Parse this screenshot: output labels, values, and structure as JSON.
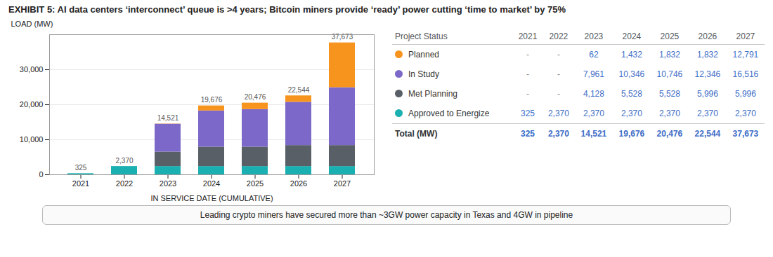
{
  "chart_data": {
    "type": "bar",
    "stacked": true,
    "title": "EXHIBIT 5: AI data centers ‘interconnect’ queue is >4 years; Bitcoin miners provide ‘ready’ power cutting ‘time to market’ by 75%",
    "xlabel": "IN SERVICE DATE (CUMULATIVE)",
    "ylabel": "LOAD (MW)",
    "categories": [
      "2021",
      "2022",
      "2023",
      "2024",
      "2025",
      "2026",
      "2027"
    ],
    "series": [
      {
        "name": "Approved to Energize",
        "color": "#1AAFB0",
        "values": [
          325,
          2370,
          2370,
          2370,
          2370,
          2370,
          2370
        ],
        "value_labels": [
          "325",
          "2,370",
          "2,370",
          "2,370",
          "2,370",
          "2,370",
          "2,370"
        ]
      },
      {
        "name": "Met Planning",
        "color": "#595F66",
        "values": [
          0,
          0,
          4128,
          5528,
          5528,
          5996,
          5996
        ],
        "value_labels": [
          "-",
          "-",
          "4,128",
          "5,528",
          "5,528",
          "5,996",
          "5,996"
        ]
      },
      {
        "name": "In Study",
        "color": "#7B68C8",
        "values": [
          0,
          0,
          7961,
          10346,
          10746,
          12346,
          16516
        ],
        "value_labels": [
          "-",
          "-",
          "7,961",
          "10,346",
          "10,746",
          "12,346",
          "16,516"
        ]
      },
      {
        "name": "Planned",
        "color": "#F7941D",
        "values": [
          0,
          0,
          62,
          1432,
          1832,
          1832,
          12791
        ],
        "value_labels": [
          "-",
          "-",
          "62",
          "1,432",
          "1,832",
          "1,832",
          "12,791"
        ]
      }
    ],
    "totals": {
      "name": "Total (MW)",
      "values": [
        325,
        2370,
        14521,
        19676,
        20476,
        22544,
        37673
      ],
      "value_labels": [
        "325",
        "2,370",
        "14,521",
        "19,676",
        "20,476",
        "22,544",
        "37,673"
      ]
    },
    "ylim": [
      0,
      40000
    ],
    "yticks": [
      0,
      {
        "value": 10000,
        "label": "10,000"
      },
      {
        "value": 20000,
        "label": "20,000"
      },
      {
        "value": 30000,
        "label": "30,000"
      }
    ],
    "grid": true,
    "legend": "right",
    "legend_title": "Project Status",
    "annotations": [
      "Leading crypto miners have secured more than ~3GW power capacity in Texas and 4GW in pipeline"
    ]
  }
}
